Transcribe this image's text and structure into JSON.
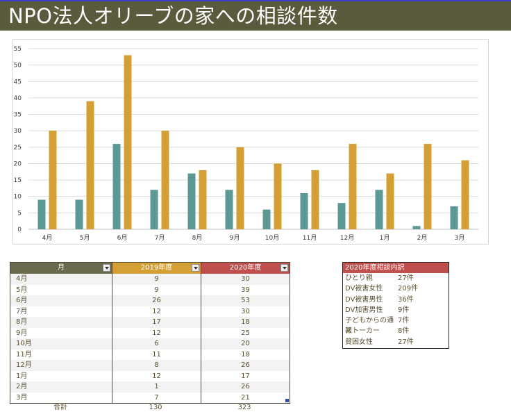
{
  "title": "NPO法人オリーブの家への相談件数",
  "colors": {
    "title_bg": "#5a5a3c",
    "series_2019": "#5b9896",
    "series_2020": "#d4a035",
    "header_month": "#6b6a4e",
    "header_2019": "#d4a035",
    "header_2020": "#c0504d"
  },
  "chart_data": {
    "type": "bar",
    "categories": [
      "4月",
      "5月",
      "6月",
      "7月",
      "8月",
      "9月",
      "10月",
      "11月",
      "12月",
      "1月",
      "2月",
      "3月"
    ],
    "series": [
      {
        "values": [
          9,
          9,
          26,
          12,
          17,
          12,
          6,
          11,
          8,
          12,
          1,
          7
        ]
      },
      {
        "values": [
          30,
          39,
          53,
          30,
          18,
          25,
          20,
          18,
          26,
          17,
          26,
          21
        ]
      }
    ],
    "yticks": [
      "0",
      "5",
      "10",
      "15",
      "20",
      "25",
      "30",
      "35",
      "40",
      "45",
      "50",
      "55"
    ],
    "ylim": [
      0,
      55
    ],
    "grid": true,
    "legend": "none"
  },
  "table": {
    "headers": [
      "月",
      "2019年度",
      "2020年度"
    ],
    "rows": [
      [
        "4月",
        "9",
        "30"
      ],
      [
        "5月",
        "9",
        "39"
      ],
      [
        "6月",
        "26",
        "53"
      ],
      [
        "7月",
        "12",
        "30"
      ],
      [
        "8月",
        "17",
        "18"
      ],
      [
        "9月",
        "12",
        "25"
      ],
      [
        "10月",
        "6",
        "20"
      ],
      [
        "11月",
        "11",
        "18"
      ],
      [
        "12月",
        "8",
        "26"
      ],
      [
        "1月",
        "12",
        "17"
      ],
      [
        "2月",
        "1",
        "26"
      ],
      [
        "3月",
        "7",
        "21"
      ]
    ],
    "footer": [
      "合計",
      "130",
      "323"
    ],
    "filter_icon": "dropdown-arrow-icon"
  },
  "breakdown": {
    "title": "2020年度相談内訳",
    "items": [
      [
        "ひとり親",
        "27件"
      ],
      [
        "DV被害女性",
        "209件"
      ],
      [
        "DV被害男性",
        "36件"
      ],
      [
        "DV加害男性",
        "9件"
      ],
      [
        "子どもからの通報",
        "7件"
      ],
      [
        "ストーカー",
        "8件"
      ],
      [
        "貧困女性",
        "27件"
      ]
    ]
  }
}
